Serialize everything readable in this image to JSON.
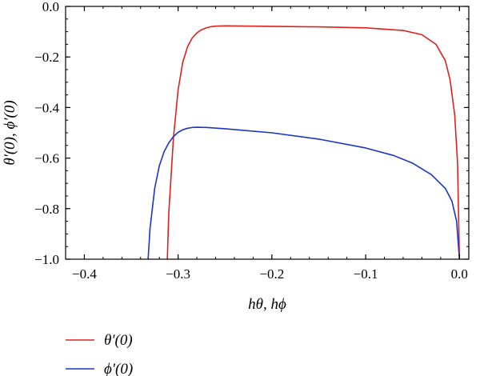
{
  "chart_data": {
    "type": "line",
    "xlabel": "hθ, hϕ",
    "ylabel": "θ′(0), ϕ′(0)",
    "xlim": [
      -0.42,
      0.01
    ],
    "ylim": [
      -1.0,
      0.0
    ],
    "xticks": [
      -0.4,
      -0.3,
      -0.2,
      -0.1,
      0.0
    ],
    "xtick_labels": [
      "−0.4",
      "−0.3",
      "−0.2",
      "−0.1",
      "0.0"
    ],
    "yticks": [
      0.0,
      -0.2,
      -0.4,
      -0.6,
      -0.8,
      -1.0
    ],
    "ytick_labels": [
      "0.0",
      "−0.2",
      "−0.4",
      "−0.6",
      "−0.8",
      "−1.0"
    ],
    "grid": false,
    "legend_position": "bottom-left, below plot",
    "series": [
      {
        "name": "θ′(0)",
        "color": "#e0201b",
        "x": [
          -0.3115,
          -0.31,
          -0.305,
          -0.3,
          -0.295,
          -0.29,
          -0.285,
          -0.28,
          -0.275,
          -0.27,
          -0.265,
          -0.26,
          -0.25,
          -0.22,
          -0.2,
          -0.15,
          -0.1,
          -0.06,
          -0.04,
          -0.025,
          -0.015,
          -0.01,
          -0.005,
          -0.002,
          0.0
        ],
        "values": [
          -1.0,
          -0.82,
          -0.52,
          -0.33,
          -0.22,
          -0.16,
          -0.125,
          -0.105,
          -0.092,
          -0.085,
          -0.08,
          -0.078,
          -0.077,
          -0.078,
          -0.079,
          -0.081,
          -0.085,
          -0.095,
          -0.112,
          -0.15,
          -0.215,
          -0.29,
          -0.43,
          -0.62,
          -1.0
        ]
      },
      {
        "name": "ϕ′(0)",
        "color": "#1a35c8",
        "x": [
          -0.332,
          -0.33,
          -0.325,
          -0.32,
          -0.315,
          -0.31,
          -0.305,
          -0.3,
          -0.295,
          -0.29,
          -0.285,
          -0.28,
          -0.27,
          -0.25,
          -0.2,
          -0.15,
          -0.1,
          -0.07,
          -0.05,
          -0.03,
          -0.015,
          -0.008,
          -0.003,
          0.0
        ],
        "values": [
          -1.0,
          -0.88,
          -0.72,
          -0.63,
          -0.575,
          -0.54,
          -0.515,
          -0.498,
          -0.488,
          -0.482,
          -0.479,
          -0.478,
          -0.479,
          -0.484,
          -0.5,
          -0.525,
          -0.56,
          -0.59,
          -0.62,
          -0.665,
          -0.72,
          -0.77,
          -0.85,
          -1.0
        ]
      }
    ]
  }
}
